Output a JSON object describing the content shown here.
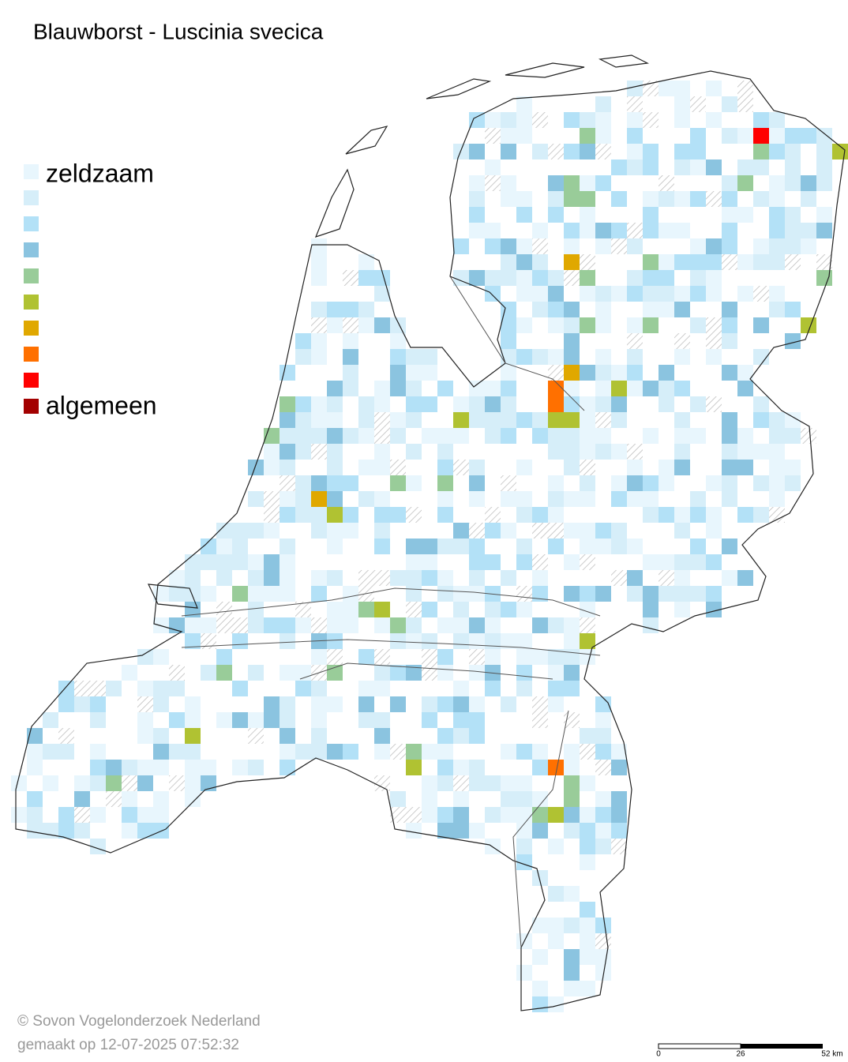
{
  "title": "Blauwborst - Luscinia svecica",
  "legend": {
    "colors": [
      "#e8f6fd",
      "#d6eef9",
      "#b3e1f7",
      "#8bc4e0",
      "#99cc99",
      "#b0c232",
      "#e0a800",
      "#ff7000",
      "#ff0000",
      "#a30000"
    ],
    "labels": [
      "zeldzaam",
      "algemeen"
    ]
  },
  "footer": {
    "copyright": "© Sovon Vogelonderzoek Nederland",
    "date": "gemaakt op 12-07-2025 07:52:32"
  },
  "scale_bar": {
    "labels": [
      "0",
      "26",
      "52 km"
    ]
  }
}
